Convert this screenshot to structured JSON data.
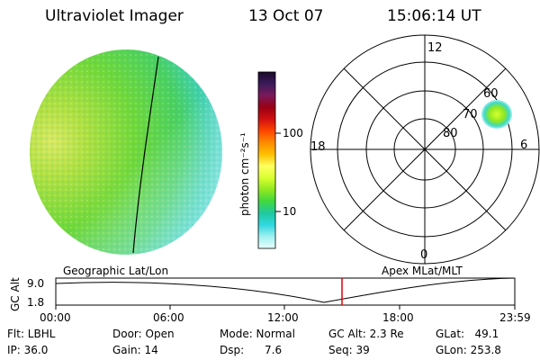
{
  "header": {
    "instrument": "Ultraviolet Imager",
    "date": "13 Oct 07",
    "time": "15:06:14 UT"
  },
  "colorbar": {
    "unit_label": "photon cm⁻²s⁻¹",
    "ticks": [
      "100",
      "10"
    ],
    "colors": [
      "#1a0a2a",
      "#3b1b5a",
      "#7a1a5a",
      "#9a0014",
      "#d01010",
      "#ff4400",
      "#ff8a00",
      "#ffc000",
      "#ffff60",
      "#d8ff30",
      "#90e820",
      "#40d840",
      "#20c8a0",
      "#30d8e0",
      "#a0f0f0",
      "#e8ffff"
    ]
  },
  "polar": {
    "mlt_labels": [
      "12",
      "18",
      "6",
      "0"
    ],
    "lat_labels": [
      "60",
      "70",
      "80"
    ]
  },
  "timeline": {
    "left_label": "Geographic Lat/Lon",
    "right_label": "Apex  MLat/MLT",
    "ylabel": "GC Alt",
    "ytop": "9.0",
    "ybottom": "1.8",
    "times": [
      "00:00",
      "06:00",
      "12:00",
      "18:00",
      "23:59"
    ]
  },
  "status": {
    "flt": "Flt: LBHL",
    "ip": "IP: 36.0",
    "door": "Door: Open",
    "gain": "Gain: 14",
    "mode": "Mode: Normal",
    "dsp": "Dsp:      7.6",
    "gcalt": "GC Alt: 2.3 Re",
    "seq": "Seq: 39",
    "glat": "GLat:   49.1",
    "glon": "GLon: 253.8"
  }
}
